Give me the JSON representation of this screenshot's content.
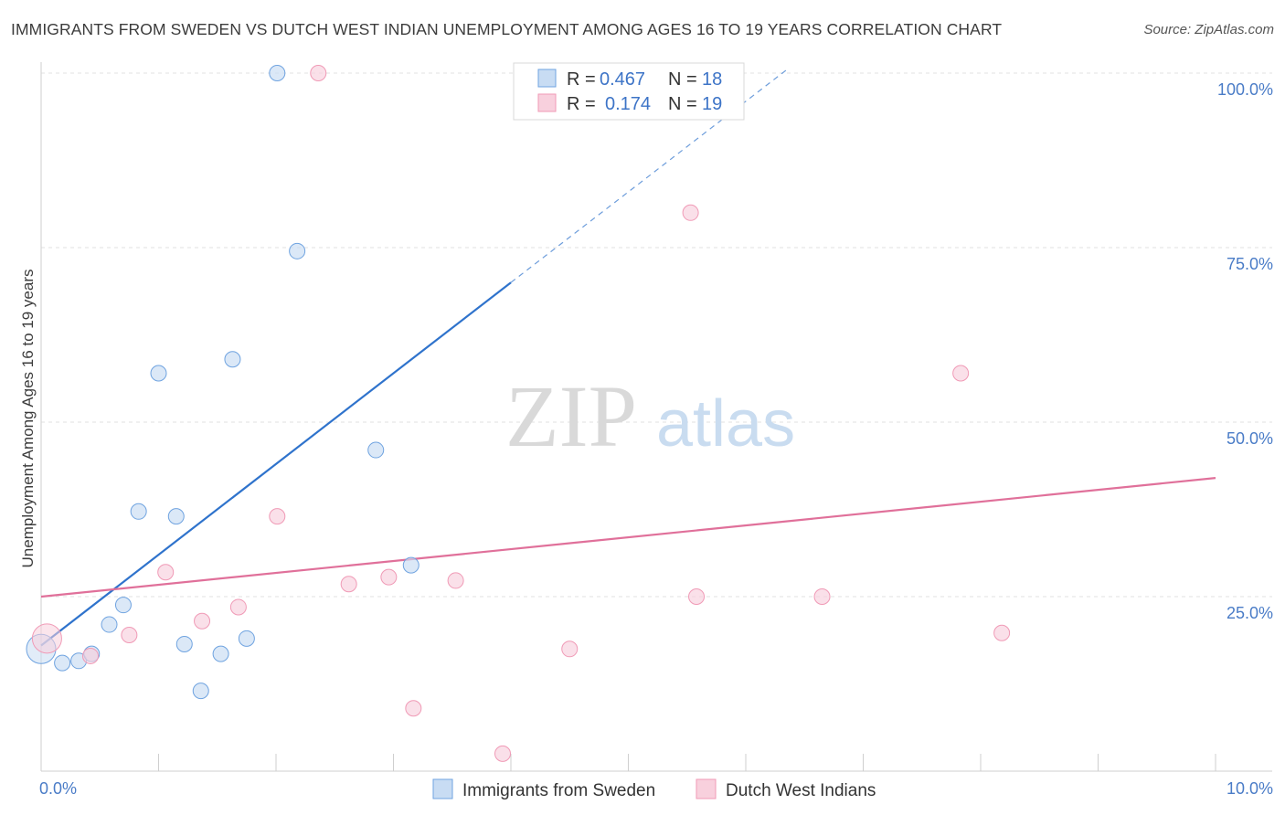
{
  "title": "IMMIGRANTS FROM SWEDEN VS DUTCH WEST INDIAN UNEMPLOYMENT AMONG AGES 16 TO 19 YEARS CORRELATION CHART",
  "source": "Source: ZipAtlas.com",
  "watermark": {
    "zip": "ZIP",
    "atlas": "atlas"
  },
  "legend_top": {
    "r_label": "R =",
    "n_label": "N =",
    "rows": [
      {
        "r": "0.467",
        "n": "18"
      },
      {
        "r": "0.174",
        "n": "19"
      }
    ]
  },
  "chart_data": {
    "type": "scatter",
    "title": "IMMIGRANTS FROM SWEDEN VS DUTCH WEST INDIAN UNEMPLOYMENT AMONG AGES 16 TO 19 YEARS CORRELATION CHART",
    "xlabel": "",
    "ylabel": "Unemployment Among Ages 16 to 19 years",
    "xlim": [
      0,
      10
    ],
    "ylim": [
      0,
      102
    ],
    "x_tick_labels": [
      "0.0%",
      "10.0%"
    ],
    "y_ticks": [
      25,
      50,
      75,
      100
    ],
    "y_tick_labels": [
      "25.0%",
      "50.0%",
      "75.0%",
      "100.0%"
    ],
    "grid": true,
    "legend_position": "top-center",
    "series": [
      {
        "name": "Immigrants from Sweden",
        "color": "#6fa3e0",
        "fill": "#c8dcf3",
        "line_color": "#2f73cc",
        "points": [
          {
            "x": 0.0,
            "y": 17.5,
            "big": true
          },
          {
            "x": 0.18,
            "y": 15.5
          },
          {
            "x": 0.32,
            "y": 15.8
          },
          {
            "x": 0.43,
            "y": 16.8
          },
          {
            "x": 0.58,
            "y": 21.0
          },
          {
            "x": 0.7,
            "y": 23.8
          },
          {
            "x": 0.83,
            "y": 37.2
          },
          {
            "x": 1.0,
            "y": 57.0
          },
          {
            "x": 1.15,
            "y": 36.5
          },
          {
            "x": 1.22,
            "y": 18.2
          },
          {
            "x": 1.36,
            "y": 11.5
          },
          {
            "x": 1.53,
            "y": 16.8
          },
          {
            "x": 1.63,
            "y": 59.0
          },
          {
            "x": 1.75,
            "y": 19.0
          },
          {
            "x": 2.01,
            "y": 100.0
          },
          {
            "x": 2.18,
            "y": 74.5
          },
          {
            "x": 2.85,
            "y": 46.0
          },
          {
            "x": 3.15,
            "y": 29.5
          }
        ],
        "trend": {
          "x0": 0.0,
          "y0": 18.0,
          "x1": 4.0,
          "y1": 70.0,
          "dash_x1": 6.35,
          "dash_y1": 100.5
        }
      },
      {
        "name": "Dutch West Indians",
        "color": "#f09ab6",
        "fill": "#f8d0dd",
        "line_color": "#e0709a",
        "points": [
          {
            "x": 0.05,
            "y": 19.0,
            "big": true
          },
          {
            "x": 0.42,
            "y": 16.5
          },
          {
            "x": 0.75,
            "y": 19.5
          },
          {
            "x": 1.06,
            "y": 28.5
          },
          {
            "x": 1.37,
            "y": 21.5
          },
          {
            "x": 1.68,
            "y": 23.5
          },
          {
            "x": 2.01,
            "y": 36.5
          },
          {
            "x": 2.36,
            "y": 100.0
          },
          {
            "x": 2.62,
            "y": 26.8
          },
          {
            "x": 2.96,
            "y": 27.8
          },
          {
            "x": 3.17,
            "y": 9.0
          },
          {
            "x": 3.53,
            "y": 27.3
          },
          {
            "x": 3.93,
            "y": 2.5
          },
          {
            "x": 4.5,
            "y": 17.5
          },
          {
            "x": 5.53,
            "y": 80.0
          },
          {
            "x": 5.58,
            "y": 25.0
          },
          {
            "x": 6.65,
            "y": 25.0
          },
          {
            "x": 7.83,
            "y": 57.0
          },
          {
            "x": 8.18,
            "y": 19.8
          }
        ],
        "trend": {
          "x0": 0.0,
          "y0": 25.0,
          "x1": 10.0,
          "y1": 42.0
        }
      }
    ]
  }
}
